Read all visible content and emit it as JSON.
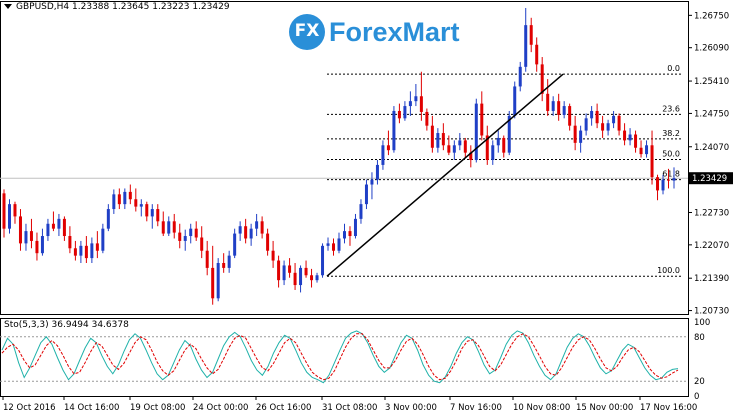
{
  "header": {
    "symbol": "GBPUSD,H4",
    "open": "1.23388",
    "high": "1.23645",
    "low": "1.23223",
    "close": "1.23429"
  },
  "logo": {
    "text": "ForexMart",
    "badge": "FX"
  },
  "colors": {
    "bull": "#1f3fc6",
    "bear": "#e00000",
    "line": "#000000",
    "sto_main": "#20b2aa",
    "sto_signal": "#e00000",
    "logo": "#2a8fd8"
  },
  "chart_data": {
    "type": "candlestick",
    "price_ticks": [
      "1.26750",
      "1.26090",
      "1.25410",
      "1.24750",
      "1.24070",
      "1.23429",
      "1.22730",
      "1.22070",
      "1.21390",
      "1.20730"
    ],
    "price_ticks_values": [
      1.2675,
      1.2609,
      1.2541,
      1.2475,
      1.2407,
      1.23429,
      1.2273,
      1.2207,
      1.2139,
      1.2073
    ],
    "ylim": [
      1.2066,
      1.2692
    ],
    "current_price": "1.23429",
    "current_price_value": 1.23429,
    "time_labels": [
      "12 Oct 2016",
      "14 Oct 16:00",
      "19 Oct 08:00",
      "24 Oct 00:00",
      "26 Oct 16:00",
      "31 Oct 08:00",
      "3 Nov 00:00",
      "7 Nov 16:00",
      "10 Nov 08:00",
      "15 Nov 00:00",
      "17 Nov 16:00"
    ],
    "fibonacci": {
      "levels": [
        {
          "label": "0.0",
          "price": 1.2555
        },
        {
          "label": "23.6",
          "price": 1.2473
        },
        {
          "label": "38.2",
          "price": 1.2423
        },
        {
          "label": "50.0",
          "price": 1.2381
        },
        {
          "label": "61.8",
          "price": 1.234
        },
        {
          "label": "100.0",
          "price": 1.2143
        }
      ]
    },
    "trendline": {
      "from_price": 1.2143,
      "to_price": 1.2555
    },
    "ohlc": [
      [
        1.2312,
        1.232,
        1.2222,
        1.224
      ],
      [
        1.224,
        1.23,
        1.223,
        1.229
      ],
      [
        1.229,
        1.2295,
        1.225,
        1.2265
      ],
      [
        1.2265,
        1.228,
        1.2195,
        1.221
      ],
      [
        1.221,
        1.225,
        1.2195,
        1.2235
      ],
      [
        1.2235,
        1.226,
        1.22,
        1.2215
      ],
      [
        1.2215,
        1.2232,
        1.2175,
        1.219
      ],
      [
        1.219,
        1.224,
        1.2185,
        1.2225
      ],
      [
        1.2225,
        1.226,
        1.2215,
        1.225
      ],
      [
        1.225,
        1.2275,
        1.2235,
        1.224
      ],
      [
        1.224,
        1.227,
        1.2225,
        1.226
      ],
      [
        1.226,
        1.2265,
        1.2215,
        1.2225
      ],
      [
        1.2225,
        1.2245,
        1.219,
        1.22
      ],
      [
        1.22,
        1.2215,
        1.2175,
        1.2185
      ],
      [
        1.2185,
        1.2215,
        1.217,
        1.2205
      ],
      [
        1.2205,
        1.2225,
        1.217,
        1.218
      ],
      [
        1.218,
        1.2222,
        1.217,
        1.221
      ],
      [
        1.221,
        1.2235,
        1.218,
        1.2195
      ],
      [
        1.2195,
        1.225,
        1.219,
        1.224
      ],
      [
        1.224,
        1.229,
        1.2235,
        1.228
      ],
      [
        1.228,
        1.232,
        1.227,
        1.231
      ],
      [
        1.231,
        1.2322,
        1.228,
        1.229
      ],
      [
        1.229,
        1.2322,
        1.228,
        1.2315
      ],
      [
        1.2315,
        1.233,
        1.229,
        1.23
      ],
      [
        1.23,
        1.2322,
        1.2275,
        1.2285
      ],
      [
        1.2285,
        1.23,
        1.2265,
        1.229
      ],
      [
        1.229,
        1.2295,
        1.2255,
        1.2265
      ],
      [
        1.2265,
        1.229,
        1.224,
        1.228
      ],
      [
        1.228,
        1.229,
        1.2245,
        1.2255
      ],
      [
        1.2255,
        1.2275,
        1.2225,
        1.223
      ],
      [
        1.223,
        1.2265,
        1.2225,
        1.2255
      ],
      [
        1.2255,
        1.227,
        1.222,
        1.2232
      ],
      [
        1.2232,
        1.225,
        1.22,
        1.2215
      ],
      [
        1.2215,
        1.2238,
        1.2195,
        1.2225
      ],
      [
        1.2225,
        1.225,
        1.221,
        1.224
      ],
      [
        1.224,
        1.2255,
        1.2215,
        1.2222
      ],
      [
        1.2222,
        1.2245,
        1.218,
        1.2195
      ],
      [
        1.2195,
        1.2215,
        1.2145,
        1.216
      ],
      [
        1.216,
        1.2205,
        1.2085,
        1.2098
      ],
      [
        1.2098,
        1.218,
        1.2092,
        1.217
      ],
      [
        1.217,
        1.219,
        1.215,
        1.216
      ],
      [
        1.216,
        1.2195,
        1.215,
        1.2185
      ],
      [
        1.2185,
        1.224,
        1.218,
        1.223
      ],
      [
        1.223,
        1.2255,
        1.2215,
        1.2245
      ],
      [
        1.2245,
        1.226,
        1.221,
        1.222
      ],
      [
        1.222,
        1.225,
        1.2205,
        1.224
      ],
      [
        1.224,
        1.227,
        1.2225,
        1.2255
      ],
      [
        1.2255,
        1.2265,
        1.222,
        1.223
      ],
      [
        1.223,
        1.224,
        1.2185,
        1.2195
      ],
      [
        1.2195,
        1.2215,
        1.216,
        1.2175
      ],
      [
        1.2175,
        1.2185,
        1.212,
        1.2135
      ],
      [
        1.2135,
        1.2175,
        1.2125,
        1.2165
      ],
      [
        1.2165,
        1.218,
        1.214,
        1.215
      ],
      [
        1.215,
        1.217,
        1.2115,
        1.2125
      ],
      [
        1.2125,
        1.2165,
        1.211,
        1.216
      ],
      [
        1.216,
        1.2175,
        1.214,
        1.2145
      ],
      [
        1.2145,
        1.2158,
        1.212,
        1.2135
      ],
      [
        1.2135,
        1.215,
        1.213,
        1.2145
      ],
      [
        1.2145,
        1.221,
        1.214,
        1.2205
      ],
      [
        1.2205,
        1.2222,
        1.2195,
        1.221
      ],
      [
        1.221,
        1.222,
        1.2185,
        1.2195
      ],
      [
        1.2195,
        1.2232,
        1.219,
        1.222
      ],
      [
        1.222,
        1.225,
        1.221,
        1.2235
      ],
      [
        1.2235,
        1.2245,
        1.2205,
        1.2225
      ],
      [
        1.2225,
        1.227,
        1.222,
        1.226
      ],
      [
        1.226,
        1.23,
        1.225,
        1.229
      ],
      [
        1.229,
        1.234,
        1.228,
        1.233
      ],
      [
        1.233,
        1.2355,
        1.23,
        1.234
      ],
      [
        1.234,
        1.238,
        1.233,
        1.237
      ],
      [
        1.237,
        1.242,
        1.236,
        1.241
      ],
      [
        1.241,
        1.244,
        1.239,
        1.24
      ],
      [
        1.24,
        1.249,
        1.2395,
        1.248
      ],
      [
        1.248,
        1.2495,
        1.2455,
        1.2465
      ],
      [
        1.2465,
        1.25,
        1.246,
        1.249
      ],
      [
        1.249,
        1.252,
        1.247,
        1.25
      ],
      [
        1.25,
        1.2535,
        1.249,
        1.251
      ],
      [
        1.251,
        1.256,
        1.246,
        1.2478
      ],
      [
        1.2478,
        1.2485,
        1.244,
        1.245
      ],
      [
        1.245,
        1.247,
        1.2395,
        1.2405
      ],
      [
        1.2405,
        1.2445,
        1.2395,
        1.2435
      ],
      [
        1.2435,
        1.2455,
        1.24,
        1.241
      ],
      [
        1.241,
        1.243,
        1.239,
        1.2395
      ],
      [
        1.2395,
        1.242,
        1.238,
        1.241
      ],
      [
        1.241,
        1.2435,
        1.24,
        1.242
      ],
      [
        1.242,
        1.2425,
        1.2385,
        1.2395
      ],
      [
        1.2395,
        1.241,
        1.2365,
        1.238
      ],
      [
        1.238,
        1.2505,
        1.2375,
        1.2495
      ],
      [
        1.2495,
        1.252,
        1.242,
        1.243
      ],
      [
        1.243,
        1.245,
        1.237,
        1.238
      ],
      [
        1.238,
        1.242,
        1.237,
        1.241
      ],
      [
        1.241,
        1.244,
        1.2395,
        1.2425
      ],
      [
        1.2425,
        1.243,
        1.2385,
        1.2395
      ],
      [
        1.2395,
        1.248,
        1.239,
        1.247
      ],
      [
        1.247,
        1.254,
        1.2465,
        1.253
      ],
      [
        1.253,
        1.258,
        1.252,
        1.257
      ],
      [
        1.257,
        1.269,
        1.256,
        1.2655
      ],
      [
        1.2655,
        1.267,
        1.26,
        1.2615
      ],
      [
        1.2615,
        1.263,
        1.256,
        1.2575
      ],
      [
        1.2575,
        1.259,
        1.25,
        1.2515
      ],
      [
        1.2515,
        1.2545,
        1.247,
        1.248
      ],
      [
        1.248,
        1.251,
        1.247,
        1.25
      ],
      [
        1.25,
        1.2515,
        1.246,
        1.2472
      ],
      [
        1.2472,
        1.25,
        1.2465,
        1.249
      ],
      [
        1.249,
        1.2495,
        1.244,
        1.245
      ],
      [
        1.245,
        1.247,
        1.24,
        1.2415
      ],
      [
        1.2415,
        1.245,
        1.2395,
        1.244
      ],
      [
        1.244,
        1.2475,
        1.243,
        1.2465
      ],
      [
        1.2465,
        1.249,
        1.245,
        1.248
      ],
      [
        1.248,
        1.2495,
        1.2445,
        1.2455
      ],
      [
        1.2455,
        1.247,
        1.2425,
        1.244
      ],
      [
        1.244,
        1.2462,
        1.243,
        1.2455
      ],
      [
        1.2455,
        1.248,
        1.2445,
        1.247
      ],
      [
        1.247,
        1.2475,
        1.243,
        1.244
      ],
      [
        1.244,
        1.2455,
        1.241,
        1.242
      ],
      [
        1.242,
        1.2445,
        1.241,
        1.2432
      ],
      [
        1.2432,
        1.244,
        1.2395,
        1.2405
      ],
      [
        1.2405,
        1.242,
        1.2385,
        1.2392
      ],
      [
        1.2392,
        1.242,
        1.2385,
        1.241
      ],
      [
        1.241,
        1.244,
        1.233,
        1.2345
      ],
      [
        1.2345,
        1.235,
        1.2298,
        1.2318
      ],
      [
        1.2318,
        1.235,
        1.231,
        1.234
      ],
      [
        1.234,
        1.2362,
        1.2322,
        1.2338
      ],
      [
        1.2338,
        1.2365,
        1.2322,
        1.2343
      ]
    ]
  },
  "stochastic": {
    "label": "Sto(5,3,3) 36.9494 34.6378",
    "levels": [
      "100",
      "80",
      "20",
      "0"
    ],
    "main": [
      62,
      78,
      70,
      45,
      25,
      38,
      55,
      72,
      80,
      70,
      52,
      35,
      22,
      30,
      48,
      65,
      78,
      72,
      55,
      40,
      30,
      42,
      60,
      76,
      84,
      78,
      62,
      45,
      30,
      22,
      28,
      45,
      62,
      75,
      68,
      50,
      35,
      25,
      32,
      50,
      68,
      80,
      86,
      80,
      65,
      48,
      35,
      28,
      40,
      58,
      72,
      82,
      78,
      62,
      45,
      32,
      25,
      22,
      18,
      28,
      45,
      62,
      78,
      85,
      88,
      84,
      72,
      55,
      40,
      32,
      38,
      55,
      72,
      82,
      78,
      62,
      42,
      28,
      20,
      18,
      26,
      40,
      58,
      72,
      80,
      76,
      60,
      42,
      30,
      35,
      52,
      70,
      82,
      88,
      85,
      72,
      55,
      40,
      28,
      22,
      30,
      48,
      66,
      78,
      84,
      80,
      68,
      52,
      38,
      30,
      34,
      48,
      62,
      70,
      66,
      52,
      38,
      28,
      22,
      24,
      32,
      36,
      37
    ],
    "signal": [
      58,
      66,
      70,
      62,
      48,
      38,
      42,
      55,
      68,
      75,
      68,
      55,
      40,
      30,
      32,
      45,
      60,
      72,
      68,
      55,
      42,
      36,
      44,
      58,
      72,
      80,
      76,
      62,
      46,
      34,
      28,
      34,
      48,
      62,
      70,
      64,
      50,
      38,
      30,
      36,
      50,
      66,
      78,
      82,
      78,
      64,
      50,
      38,
      34,
      44,
      58,
      72,
      78,
      72,
      58,
      44,
      32,
      26,
      22,
      24,
      34,
      50,
      66,
      78,
      84,
      84,
      76,
      62,
      48,
      38,
      38,
      48,
      62,
      74,
      78,
      70,
      56,
      40,
      28,
      22,
      24,
      34,
      48,
      64,
      74,
      76,
      68,
      54,
      40,
      34,
      42,
      56,
      70,
      80,
      84,
      80,
      68,
      54,
      40,
      30,
      28,
      38,
      52,
      66,
      76,
      80,
      76,
      64,
      50,
      38,
      34,
      40,
      52,
      62,
      66,
      60,
      48,
      36,
      28,
      24,
      26,
      31,
      35
    ]
  }
}
